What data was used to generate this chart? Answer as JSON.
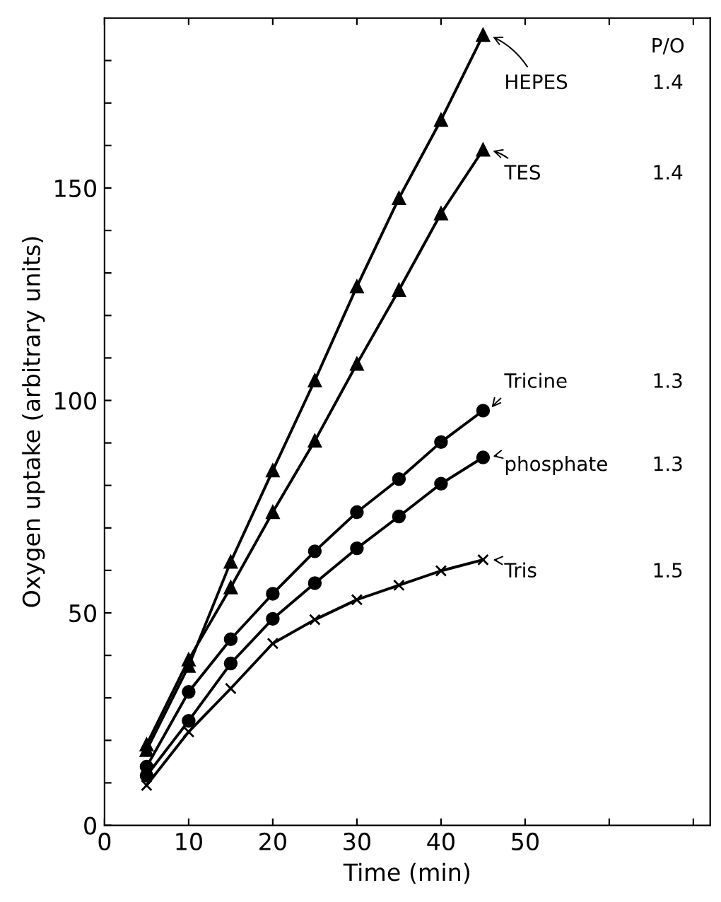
{
  "chart_data": {
    "type": "line",
    "xlabel": "Time (min)",
    "ylabel": "Oxygen uptake (arbitrary units)",
    "x": [
      5,
      10,
      15,
      20,
      25,
      30,
      35,
      40,
      45
    ],
    "series": [
      {
        "name": "HEPES",
        "color": "#000000",
        "marker": "triangle",
        "values": [
          17.7,
          37.5,
          62,
          83.5,
          104.7,
          126.8,
          147.6,
          166,
          186
        ]
      },
      {
        "name": "TES",
        "color": "#000000",
        "marker": "triangle",
        "values": [
          19,
          39,
          56,
          73.7,
          90.5,
          108.6,
          126,
          144,
          159
        ]
      },
      {
        "name": "Tricine",
        "color": "#000000",
        "marker": "circle",
        "values": [
          13.8,
          31.4,
          43.8,
          54.5,
          64.5,
          73.7,
          81.5,
          90.2,
          97.6
        ]
      },
      {
        "name": "phosphate",
        "color": "#000000",
        "marker": "circle",
        "values": [
          11.7,
          24.6,
          38.1,
          48.6,
          57,
          65.2,
          72.7,
          80.4,
          86.6
        ]
      },
      {
        "name": "Tris",
        "color": "#000000",
        "marker": "cross",
        "values": [
          9.4,
          22,
          32.2,
          42.8,
          48.4,
          53.1,
          56.5,
          59.9,
          62.5
        ]
      }
    ],
    "annotations": [
      "P/O",
      "1.4",
      "1.4",
      "1.3",
      "1.3",
      "1.5"
    ],
    "xlim": [
      0,
      72
    ],
    "ylim": [
      0,
      190
    ],
    "xticks": [
      0,
      10,
      20,
      30,
      40,
      50,
      {
        "value": 60,
        "label": null
      },
      {
        "value": 70,
        "label": null
      }
    ],
    "yticks": [
      0,
      {
        "value": 10,
        "label": null
      },
      {
        "value": 20,
        "label": null
      },
      {
        "value": 30,
        "label": null
      },
      {
        "value": 40,
        "label": null
      },
      50,
      {
        "value": 60,
        "label": null
      },
      {
        "value": 70,
        "label": null
      },
      {
        "value": 80,
        "label": null
      },
      {
        "value": 90,
        "label": null
      },
      100,
      {
        "value": 110,
        "label": null
      },
      {
        "value": 120,
        "label": null
      },
      {
        "value": 130,
        "label": null
      },
      {
        "value": 140,
        "label": null
      },
      150,
      {
        "value": 160,
        "label": null
      },
      {
        "value": 170,
        "label": null
      },
      {
        "value": 180,
        "label": null
      }
    ],
    "grid": false,
    "legend": "right",
    "line_style": "solid"
  }
}
